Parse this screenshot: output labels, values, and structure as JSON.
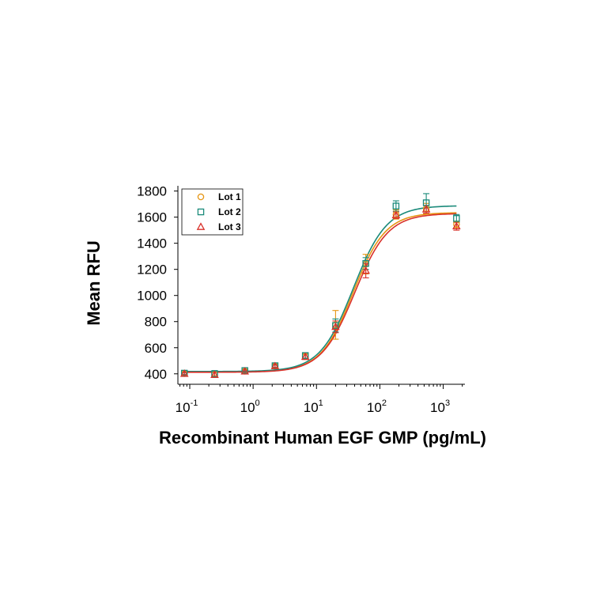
{
  "chart_data": {
    "type": "scatter",
    "xlabel": "Recombinant Human EGF GMP (pg/mL)",
    "ylabel": "Mean RFU",
    "xscale": "log",
    "xlim": [
      0.065,
      2200
    ],
    "ylim": [
      320,
      1840
    ],
    "y_ticks": [
      400,
      600,
      800,
      1000,
      1200,
      1400,
      1600,
      1800
    ],
    "x_ticks": [
      {
        "value": 0.1,
        "base": "10",
        "exp": "-1"
      },
      {
        "value": 1,
        "base": "10",
        "exp": "0"
      },
      {
        "value": 10,
        "base": "10",
        "exp": "1"
      },
      {
        "value": 100,
        "base": "10",
        "exp": "2"
      },
      {
        "value": 1000,
        "base": "10",
        "exp": "3"
      }
    ],
    "grid": false,
    "legend": "top-left",
    "x": [
      0.0823,
      0.247,
      0.741,
      2.22,
      6.67,
      20,
      60,
      180,
      540,
      1620
    ],
    "series": [
      {
        "name": "Lot 1",
        "marker": "circle",
        "color": "#e69512",
        "values": [
          402,
          398,
          420,
          460,
          535,
          775,
          1240,
          1620,
          1665,
          1545
        ],
        "errors": [
          10,
          12,
          10,
          12,
          25,
          110,
          75,
          35,
          40,
          25
        ],
        "fit": {
          "bottom": 415,
          "top": 1635,
          "ec50": 38,
          "hill": 1.7
        }
      },
      {
        "name": "Lot 2",
        "marker": "square",
        "color": "#1a8a7a",
        "values": [
          405,
          400,
          425,
          462,
          540,
          770,
          1245,
          1685,
          1710,
          1590
        ],
        "errors": [
          10,
          25,
          10,
          12,
          20,
          50,
          45,
          40,
          70,
          30
        ],
        "fit": {
          "bottom": 418,
          "top": 1688,
          "ec50": 38,
          "hill": 1.65
        }
      },
      {
        "name": "Lot 3",
        "marker": "triangle",
        "color": "#d9312a",
        "values": [
          400,
          392,
          418,
          458,
          530,
          760,
          1190,
          1615,
          1660,
          1530
        ],
        "errors": [
          10,
          20,
          12,
          10,
          20,
          45,
          55,
          25,
          30,
          30
        ],
        "fit": {
          "bottom": 412,
          "top": 1628,
          "ec50": 40,
          "hill": 1.65
        }
      }
    ]
  }
}
